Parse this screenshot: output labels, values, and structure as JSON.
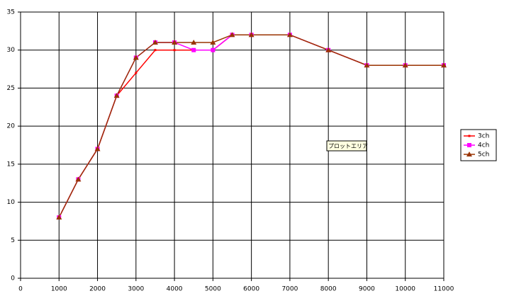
{
  "chart_data": {
    "type": "line",
    "x": [
      1000,
      1500,
      2000,
      2500,
      3000,
      3500,
      4000,
      4500,
      5000,
      5500,
      6000,
      7000,
      8000,
      9000,
      10000,
      11000
    ],
    "series": [
      {
        "name": "3ch",
        "color": "#ff0000",
        "marker": "square-small",
        "values": [
          8,
          13,
          17,
          24,
          27,
          30,
          30,
          30,
          30,
          32,
          32,
          32,
          30,
          28,
          28,
          28
        ]
      },
      {
        "name": "4ch",
        "color": "#ff00ff",
        "marker": "square",
        "values": [
          8,
          13,
          17,
          24,
          29,
          31,
          31,
          30,
          30,
          32,
          32,
          32,
          30,
          28,
          28,
          28
        ]
      },
      {
        "name": "5ch",
        "color": "#993300",
        "marker": "triangle",
        "values": [
          8,
          13,
          17,
          24,
          29,
          31,
          31,
          31,
          31,
          32,
          32,
          32,
          30,
          28,
          28,
          28
        ]
      }
    ],
    "xlim": [
      0,
      11000
    ],
    "xticks": [
      0,
      1000,
      2000,
      3000,
      4000,
      5000,
      6000,
      7000,
      8000,
      9000,
      10000,
      11000
    ],
    "ylim": [
      0,
      35
    ],
    "yticks": [
      0,
      5,
      10,
      15,
      20,
      25,
      30,
      35
    ],
    "grid": true,
    "legend": "right",
    "tooltip": "プロットエリア"
  }
}
